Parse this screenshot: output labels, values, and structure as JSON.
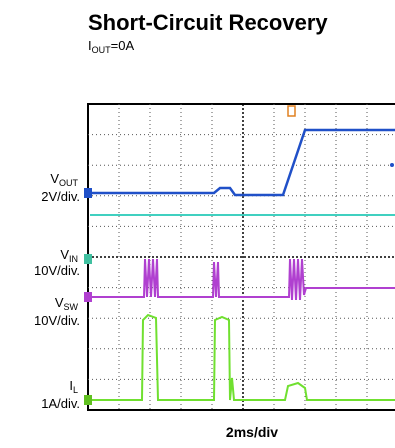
{
  "title": "Short-Circuit Recovery",
  "subtitle": {
    "main": "I",
    "sub": "OUT",
    "rest": "=0A"
  },
  "channels": [
    {
      "main": "V",
      "sub": "OUT",
      "scale": "2V/div."
    },
    {
      "main": "V",
      "sub": "IN",
      "scale": "10V/div."
    },
    {
      "main": "V",
      "sub": "SW",
      "scale": "10V/div."
    },
    {
      "main": "I",
      "sub": "L",
      "scale": "1A/div."
    }
  ],
  "x_label": "2ms/div"
}
